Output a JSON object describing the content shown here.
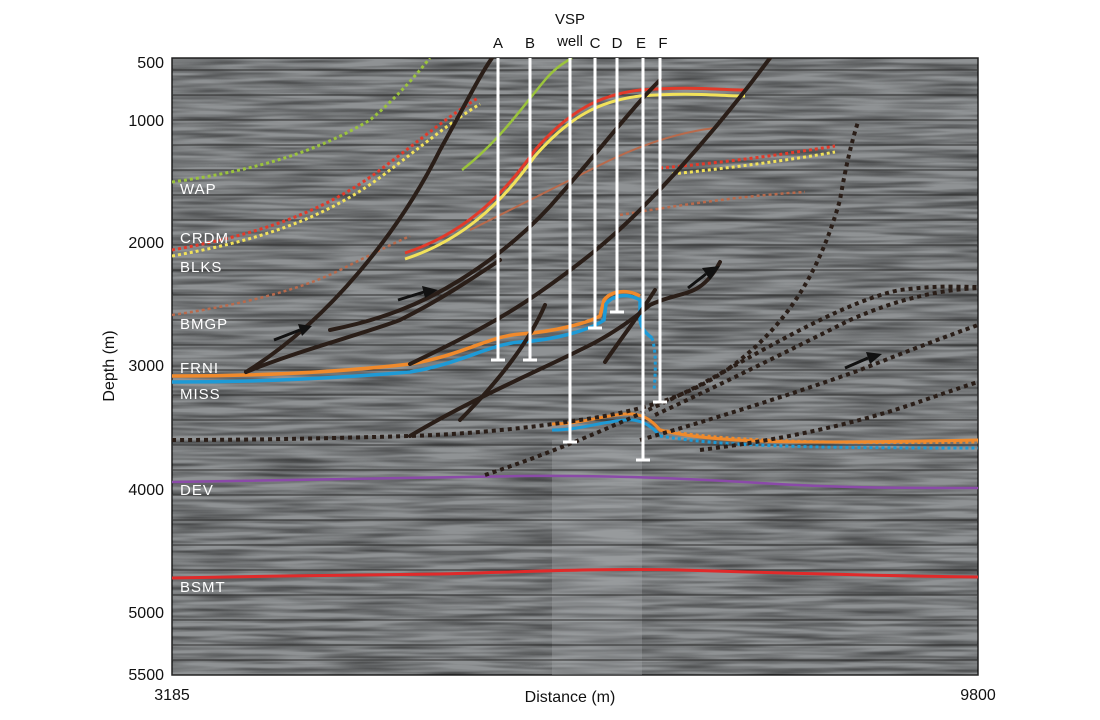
{
  "figure": {
    "title_line1": "VSP",
    "title_line2": "well",
    "x_axis_label": "Distance (m)",
    "y_axis_label": "Depth (m)",
    "x_min_label": "3185",
    "x_max_label": "9800"
  },
  "chart_data": {
    "type": "seismic-section",
    "xlim": [
      3185,
      9800
    ],
    "ylim": [
      5500,
      500
    ],
    "y_ticks": [
      {
        "value": 500,
        "label": "500"
      },
      {
        "value": 1000,
        "label": "1000"
      },
      {
        "value": 2000,
        "label": "2000"
      },
      {
        "value": 3000,
        "label": "3000"
      },
      {
        "value": 4000,
        "label": "4000"
      },
      {
        "value": 5000,
        "label": "5000"
      },
      {
        "value": 5500,
        "label": "5500"
      }
    ],
    "horizons": [
      "WAP",
      "CRDM",
      "BLKS",
      "BMGP",
      "FRNI",
      "MISS",
      "DEV",
      "BSMT"
    ],
    "wells": [
      "A",
      "B",
      "C",
      "D",
      "E",
      "F"
    ],
    "colors": {
      "background": "#8f9294",
      "wap": "#9bc43c",
      "crdm_red": "#e23a2a",
      "crdm_yellow": "#f2e25a",
      "blks": "#b86a4c",
      "frni": "#f08a2c",
      "miss": "#1e9ad6",
      "dev": "#8a4aa8",
      "bsmt": "#e02a2a",
      "fault": "#2a1e18"
    }
  }
}
